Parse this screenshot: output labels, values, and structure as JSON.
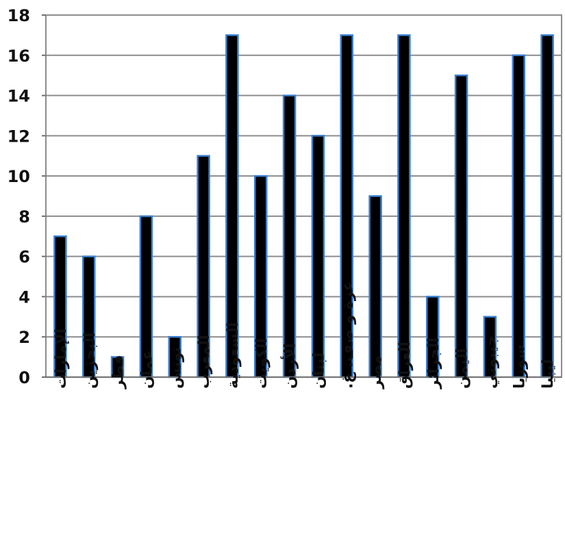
{
  "chart_data": {
    "type": "bar",
    "title": "",
    "xlabel": "",
    "ylabel": "",
    "ylim": [
      0,
      18
    ],
    "yticks": [
      0,
      2,
      4,
      6,
      8,
      10,
      12,
      14,
      16,
      18
    ],
    "grid": true,
    "legend": "none",
    "categories": [
      "الإمارات",
      "البحرين",
      "قطر",
      "عمان",
      "تونس",
      "المغرب",
      "السعودية",
      "الكويت",
      "الأردن",
      "لبنان",
      "غزة و ضف. غ.",
      "مصر",
      "العراق",
      "الجزائر",
      "اليمن",
      "جيبوتي",
      "سوريا",
      "ليبيا"
    ],
    "values": [
      7,
      6,
      1,
      8,
      2,
      11,
      17,
      10,
      14,
      12,
      17,
      9,
      17,
      4,
      15,
      3,
      16,
      17
    ],
    "bar_color": "#000000",
    "bar_edge_color": "#3a7fd0",
    "grid_color": "#8c8c8c"
  }
}
